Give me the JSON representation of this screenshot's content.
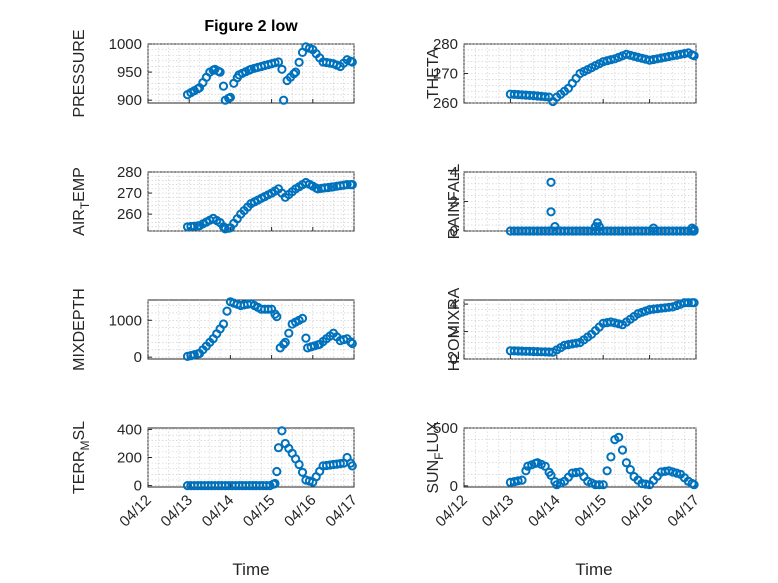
{
  "figure": {
    "title": "Figure 2 low",
    "marker_color": "#0072BD",
    "x_axis": {
      "label": "Time",
      "range": [
        "2000-04-12",
        "2000-04-17"
      ],
      "tick_dates": [
        "2000-04-12",
        "2000-04-13",
        "2000-04-14",
        "2000-04-15",
        "2000-04-16",
        "2000-04-17"
      ],
      "tick_labels": [
        "04/12",
        "04/13",
        "04/14",
        "04/15",
        "04/16",
        "04/17"
      ]
    }
  },
  "chart_data": [
    {
      "type": "scatter",
      "ylabel": "PRESSURE",
      "ylim": [
        895,
        1000
      ],
      "yticks": [
        900,
        950,
        1000
      ],
      "grid": true,
      "keys": [
        [
          "2000-04-12T23:00",
          910
        ],
        [
          "2000-04-13T06:00",
          922
        ],
        [
          "2000-04-13T12:00",
          950
        ],
        [
          "2000-04-13T15:00",
          955
        ],
        [
          "2000-04-13T18:00",
          950
        ],
        [
          "2000-04-13T20:00",
          925
        ],
        [
          "2000-04-13T21:00",
          900
        ],
        [
          "2000-04-14T00:00",
          905
        ],
        [
          "2000-04-14T02:00",
          930
        ],
        [
          "2000-04-14T05:00",
          945
        ],
        [
          "2000-04-14T12:00",
          955
        ],
        [
          "2000-04-15T00:00",
          965
        ],
        [
          "2000-04-15T04:00",
          968
        ],
        [
          "2000-04-15T06:00",
          955
        ],
        [
          "2000-04-15T07:00",
          900
        ],
        [
          "2000-04-15T09:00",
          935
        ],
        [
          "2000-04-15T14:00",
          950
        ],
        [
          "2000-04-15T18:00",
          985
        ],
        [
          "2000-04-15T20:00",
          995
        ],
        [
          "2000-04-16T00:00",
          990
        ],
        [
          "2000-04-16T06:00",
          968
        ],
        [
          "2000-04-16T12:00",
          965
        ],
        [
          "2000-04-16T16:00",
          960
        ],
        [
          "2000-04-16T20:00",
          972
        ],
        [
          "2000-04-16T23:00",
          968
        ]
      ],
      "step_hours": 2
    },
    {
      "type": "scatter",
      "ylabel": "THETA",
      "ylim": [
        260,
        280
      ],
      "yticks": [
        260,
        270,
        280
      ],
      "grid": true,
      "keys": [
        [
          "2000-04-13T00:00",
          263
        ],
        [
          "2000-04-13T12:00",
          262.5
        ],
        [
          "2000-04-13T20:00",
          262
        ],
        [
          "2000-04-13T22:00",
          260.5
        ],
        [
          "2000-04-14T00:00",
          262
        ],
        [
          "2000-04-14T06:00",
          265
        ],
        [
          "2000-04-14T12:00",
          270
        ],
        [
          "2000-04-15T00:00",
          274
        ],
        [
          "2000-04-15T06:00",
          275
        ],
        [
          "2000-04-15T12:00",
          276.5
        ],
        [
          "2000-04-16T00:00",
          274.5
        ],
        [
          "2000-04-16T12:00",
          276
        ],
        [
          "2000-04-16T20:00",
          277
        ],
        [
          "2000-04-16T23:00",
          276
        ]
      ],
      "step_hours": 2
    },
    {
      "type": "scatter",
      "ylabel": "AIR_TEMP",
      "ylim": [
        252,
        280
      ],
      "yticks": [
        260,
        270,
        280
      ],
      "grid": true,
      "keys": [
        [
          "2000-04-12T23:00",
          254
        ],
        [
          "2000-04-13T06:00",
          254.5
        ],
        [
          "2000-04-13T14:00",
          258
        ],
        [
          "2000-04-13T18:00",
          256
        ],
        [
          "2000-04-13T21:00",
          253
        ],
        [
          "2000-04-14T00:00",
          253.5
        ],
        [
          "2000-04-14T06:00",
          260
        ],
        [
          "2000-04-14T12:00",
          265
        ],
        [
          "2000-04-15T00:00",
          270
        ],
        [
          "2000-04-15T04:00",
          272
        ],
        [
          "2000-04-15T08:00",
          268
        ],
        [
          "2000-04-15T14:00",
          272
        ],
        [
          "2000-04-15T20:00",
          275
        ],
        [
          "2000-04-16T03:00",
          272
        ],
        [
          "2000-04-16T12:00",
          273
        ],
        [
          "2000-04-16T20:00",
          274
        ],
        [
          "2000-04-16T23:00",
          274
        ]
      ],
      "step_hours": 2
    },
    {
      "type": "scatter",
      "ylabel": "RAINFALL",
      "ylim": [
        0,
        4
      ],
      "yticks": [
        0,
        2,
        4
      ],
      "grid": true,
      "keys": [
        [
          "2000-04-13T00:00",
          0
        ],
        [
          "2000-04-16T23:00",
          0
        ]
      ],
      "step_hours": 2,
      "extra_points": [
        [
          "2000-04-13T21:00",
          3.3
        ],
        [
          "2000-04-13T21:00",
          1.3
        ],
        [
          "2000-04-13T23:00",
          0.3
        ],
        [
          "2000-04-14T20:00",
          0.3
        ],
        [
          "2000-04-14T21:00",
          0.55
        ],
        [
          "2000-04-14T22:00",
          0.3
        ],
        [
          "2000-04-16T02:00",
          0.2
        ],
        [
          "2000-04-16T22:00",
          0.2
        ],
        [
          "2000-04-16T23:00",
          0.1
        ]
      ]
    },
    {
      "type": "scatter",
      "ylabel": "MIXDEPTH",
      "ylim": [
        -50,
        1550
      ],
      "yticks": [
        0,
        1000
      ],
      "grid": true,
      "keys": [
        [
          "2000-04-12T23:00",
          20
        ],
        [
          "2000-04-13T06:00",
          100
        ],
        [
          "2000-04-13T14:00",
          500
        ],
        [
          "2000-04-13T20:00",
          900
        ],
        [
          "2000-04-13T22:00",
          1250
        ],
        [
          "2000-04-14T00:00",
          1500
        ],
        [
          "2000-04-14T06:00",
          1400
        ],
        [
          "2000-04-14T12:00",
          1450
        ],
        [
          "2000-04-14T18:00",
          1300
        ],
        [
          "2000-04-15T00:00",
          1300
        ],
        [
          "2000-04-15T03:00",
          1100
        ],
        [
          "2000-04-15T05:00",
          250
        ],
        [
          "2000-04-15T08:00",
          400
        ],
        [
          "2000-04-15T12:00",
          900
        ],
        [
          "2000-04-15T18:00",
          1050
        ],
        [
          "2000-04-15T21:00",
          250
        ],
        [
          "2000-04-16T04:00",
          350
        ],
        [
          "2000-04-16T12:00",
          650
        ],
        [
          "2000-04-16T16:00",
          450
        ],
        [
          "2000-04-16T20:00",
          500
        ],
        [
          "2000-04-16T23:00",
          370
        ]
      ],
      "step_hours": 2
    },
    {
      "type": "scatter",
      "ylabel": "H2OMIXRA",
      "ylim": [
        0,
        4.3
      ],
      "yticks": [
        0,
        2,
        4
      ],
      "grid": true,
      "keys": [
        [
          "2000-04-13T00:00",
          0.6
        ],
        [
          "2000-04-13T22:00",
          0.5
        ],
        [
          "2000-04-14T04:00",
          1.0
        ],
        [
          "2000-04-14T12:00",
          1.2
        ],
        [
          "2000-04-14T18:00",
          1.8
        ],
        [
          "2000-04-15T00:00",
          2.6
        ],
        [
          "2000-04-15T04:00",
          2.7
        ],
        [
          "2000-04-15T10:00",
          2.5
        ],
        [
          "2000-04-15T18:00",
          3.3
        ],
        [
          "2000-04-16T00:00",
          3.6
        ],
        [
          "2000-04-16T12:00",
          3.8
        ],
        [
          "2000-04-16T18:00",
          4.1
        ],
        [
          "2000-04-16T23:00",
          4.1
        ]
      ],
      "step_hours": 2
    },
    {
      "type": "scatter",
      "ylabel": "TERR_MSL",
      "ylim": [
        -10,
        410
      ],
      "yticks": [
        0,
        200,
        400
      ],
      "grid": true,
      "keys": [
        [
          "2000-04-12T23:00",
          0
        ],
        [
          "2000-04-14T23:00",
          0
        ],
        [
          "2000-04-15T02:00",
          15
        ],
        [
          "2000-04-15T03:00",
          100
        ],
        [
          "2000-04-15T04:00",
          270
        ],
        [
          "2000-04-15T06:00",
          390
        ],
        [
          "2000-04-15T08:00",
          300
        ],
        [
          "2000-04-15T12:00",
          230
        ],
        [
          "2000-04-15T16:00",
          150
        ],
        [
          "2000-04-15T20:00",
          40
        ],
        [
          "2000-04-16T00:00",
          25
        ],
        [
          "2000-04-16T06:00",
          140
        ],
        [
          "2000-04-16T12:00",
          150
        ],
        [
          "2000-04-16T18:00",
          160
        ],
        [
          "2000-04-16T20:00",
          200
        ],
        [
          "2000-04-16T23:00",
          140
        ]
      ],
      "step_hours": 2
    },
    {
      "type": "scatter",
      "ylabel": "SUN_FLUX",
      "ylim": [
        -10,
        500
      ],
      "yticks": [
        0,
        500
      ],
      "grid": true,
      "keys": [
        [
          "2000-04-13T00:00",
          30
        ],
        [
          "2000-04-13T06:00",
          50
        ],
        [
          "2000-04-13T09:00",
          170
        ],
        [
          "2000-04-13T14:00",
          200
        ],
        [
          "2000-04-13T18:00",
          170
        ],
        [
          "2000-04-13T21:00",
          90
        ],
        [
          "2000-04-14T00:00",
          10
        ],
        [
          "2000-04-14T04:00",
          40
        ],
        [
          "2000-04-14T08:00",
          110
        ],
        [
          "2000-04-14T12:00",
          120
        ],
        [
          "2000-04-14T16:00",
          40
        ],
        [
          "2000-04-14T20:00",
          10
        ],
        [
          "2000-04-15T00:00",
          10
        ],
        [
          "2000-04-15T04:00",
          250
        ],
        [
          "2000-04-15T06:00",
          400
        ],
        [
          "2000-04-15T08:00",
          420
        ],
        [
          "2000-04-15T12:00",
          200
        ],
        [
          "2000-04-15T16:00",
          80
        ],
        [
          "2000-04-15T20:00",
          20
        ],
        [
          "2000-04-16T00:00",
          10
        ],
        [
          "2000-04-16T06:00",
          120
        ],
        [
          "2000-04-16T10:00",
          130
        ],
        [
          "2000-04-16T16:00",
          100
        ],
        [
          "2000-04-16T20:00",
          40
        ],
        [
          "2000-04-16T23:00",
          10
        ]
      ],
      "step_hours": 2
    }
  ]
}
